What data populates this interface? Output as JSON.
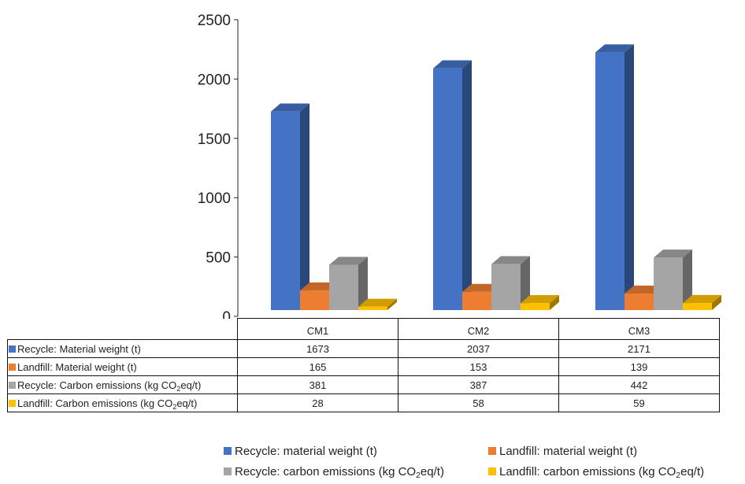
{
  "chart_data": {
    "type": "bar",
    "style": "3d-clustered-column-with-data-table",
    "categories": [
      "CM1",
      "CM2",
      "CM3"
    ],
    "ylim": [
      0,
      2500
    ],
    "yticks": [
      "0",
      "500",
      "1000",
      "1500",
      "2000",
      "2500"
    ],
    "series": [
      {
        "table_label": "Recycle: Material weight (t)",
        "legend_label": "Recycle: material weight (t)",
        "color": "#4472C4",
        "values": [
          1673,
          2037,
          2171
        ]
      },
      {
        "table_label": "Landfill: Material weight (t)",
        "legend_label": "Landfill: material weight (t)",
        "color": "#ED7D31",
        "values": [
          165,
          153,
          139
        ]
      },
      {
        "table_label": "Recycle: Carbon emissions (kg CO",
        "table_label_sub": "2",
        "table_label_end": "eq/t)",
        "legend_label": "Recycle: carbon emissions (kg CO",
        "legend_label_sub": "2",
        "legend_label_end": "eq/t)",
        "color": "#A5A5A5",
        "values": [
          381,
          387,
          442
        ]
      },
      {
        "table_label": "Landfill: Carbon emissions (kg CO",
        "table_label_sub": "2",
        "table_label_end": "eq/t)",
        "legend_label": "Landfill: carbon emissions (kg CO",
        "legend_label_sub": "2",
        "legend_label_end": "eq/t)",
        "color": "#FFC000",
        "values": [
          28,
          58,
          59
        ]
      }
    ],
    "legend_position": "bottom",
    "grid": false
  }
}
